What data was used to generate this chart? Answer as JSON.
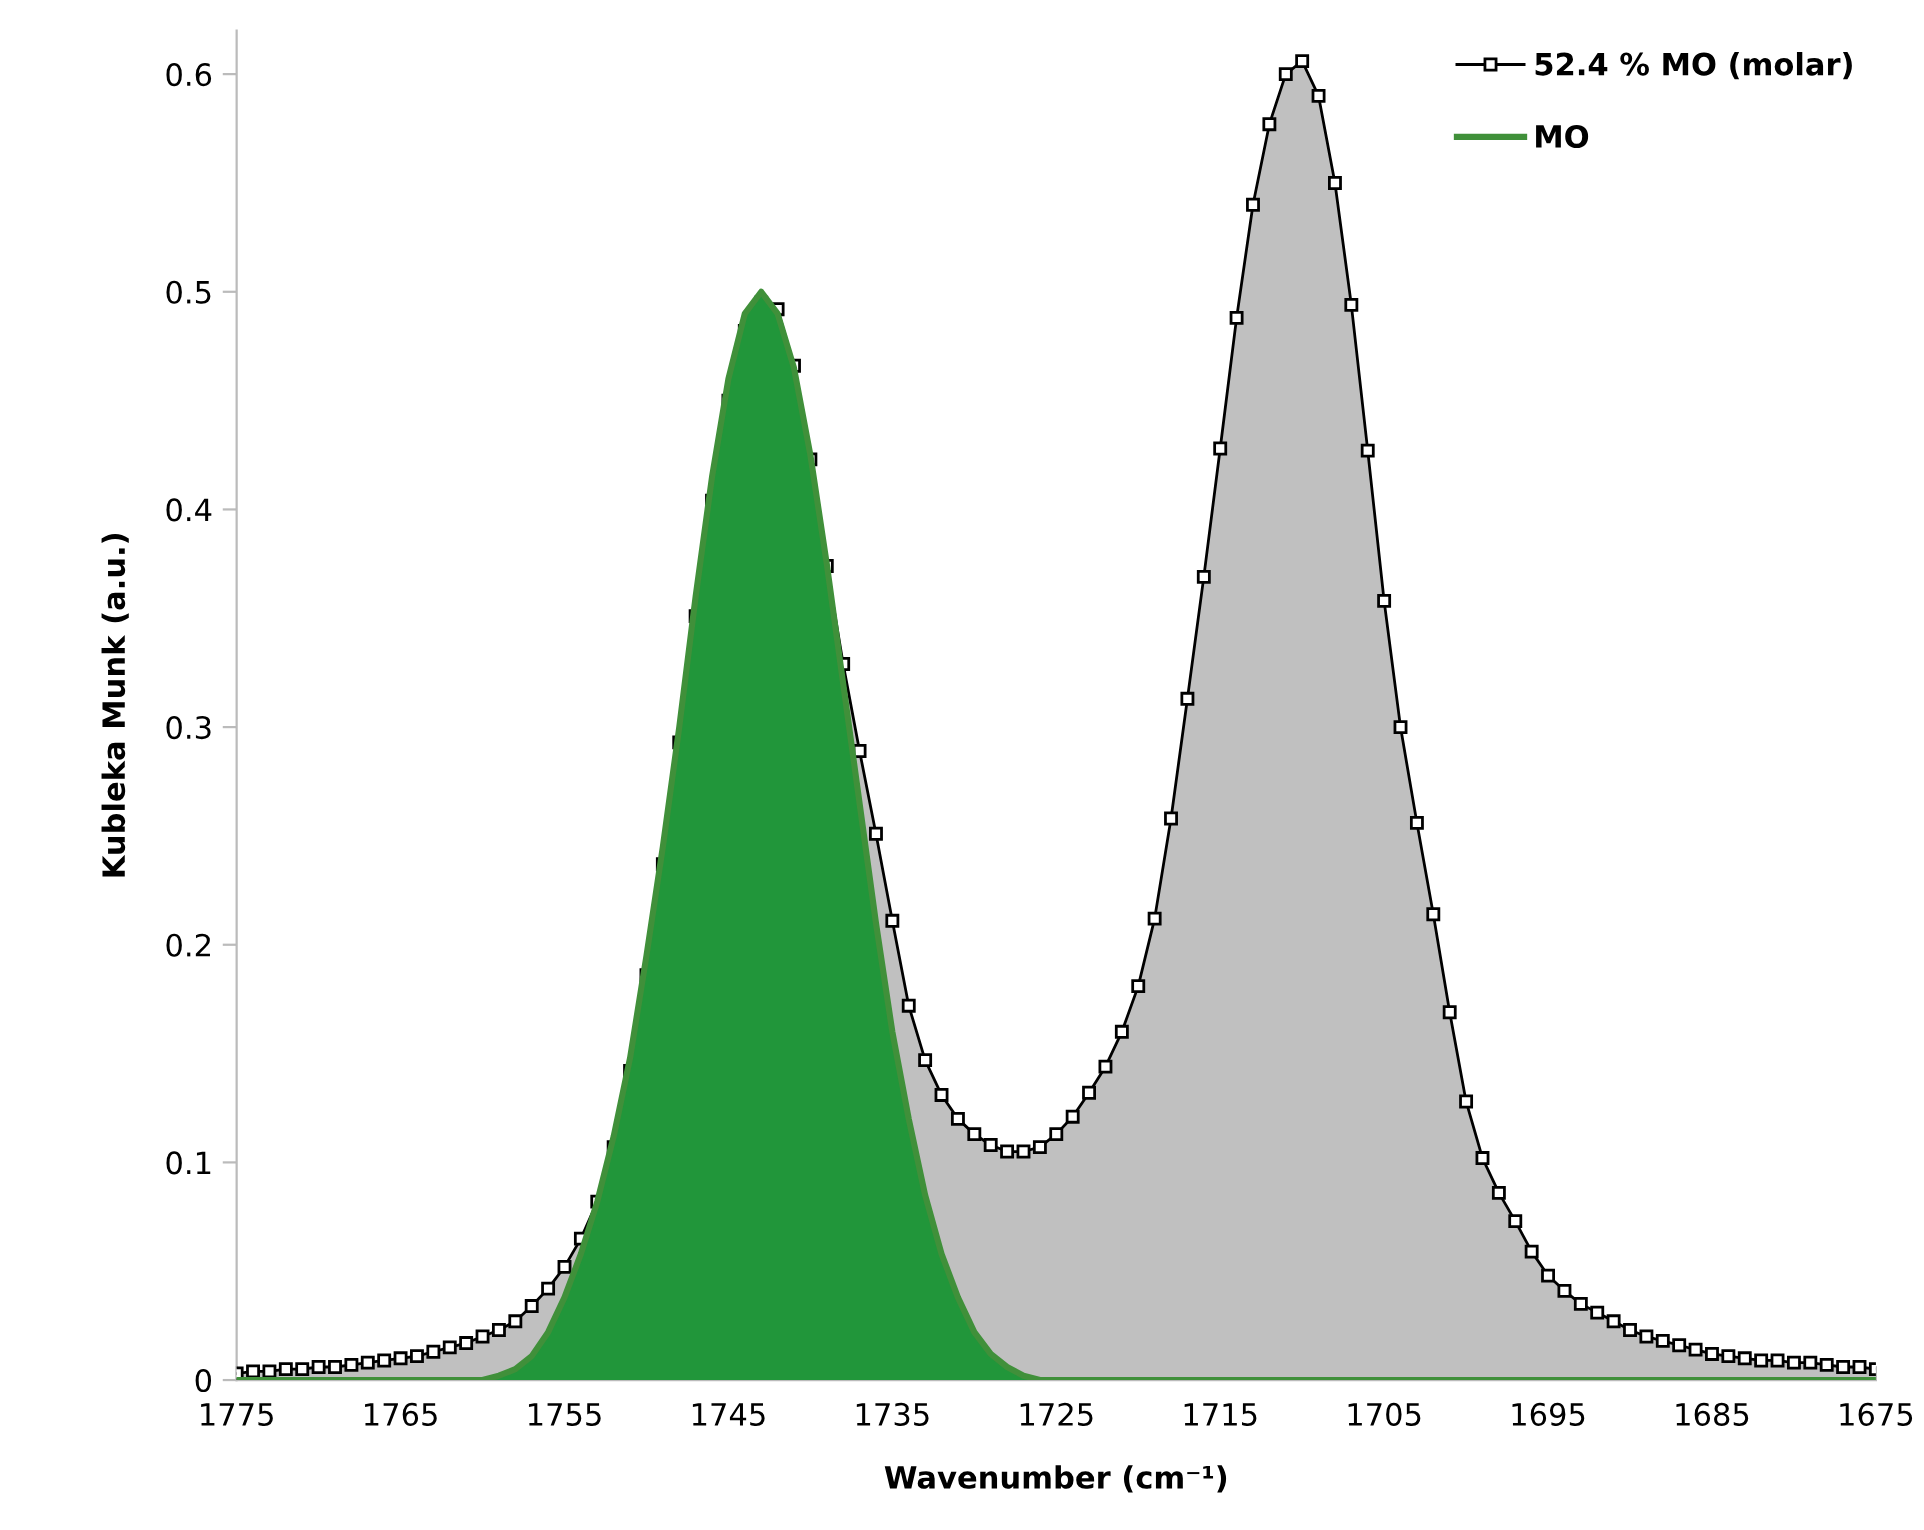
{
  "chart_data": {
    "type": "area",
    "xlabel": "Wavenumber (cm⁻¹)",
    "ylabel": "Kubleka Munk (a.u.)",
    "xlim": [
      1775,
      1675
    ],
    "xticks": [
      1775,
      1765,
      1755,
      1745,
      1735,
      1725,
      1715,
      1705,
      1695,
      1685,
      1675
    ],
    "ylim": [
      0,
      0.62
    ],
    "yticks": [
      0,
      0.1,
      0.2,
      0.3,
      0.4,
      0.5,
      0.6
    ],
    "grid": false,
    "legend": "top right",
    "series": [
      {
        "name": "52.4 % MO (molar)",
        "color": "#c0c0c0",
        "marker": "square",
        "x": [
          1775,
          1774,
          1773,
          1772,
          1771,
          1770,
          1769,
          1768,
          1767,
          1766,
          1765,
          1764,
          1763,
          1762,
          1761,
          1760,
          1759,
          1758,
          1757,
          1756,
          1755,
          1754,
          1753,
          1752,
          1751,
          1750,
          1749,
          1748,
          1747,
          1746,
          1745,
          1744,
          1743,
          1742,
          1741,
          1740,
          1739,
          1738,
          1737,
          1736,
          1735,
          1734,
          1733,
          1732,
          1731,
          1730,
          1729,
          1728,
          1727,
          1726,
          1725,
          1724,
          1723,
          1722,
          1721,
          1720,
          1719,
          1718,
          1717,
          1716,
          1715,
          1714,
          1713,
          1712,
          1711,
          1710,
          1709,
          1708,
          1707,
          1706,
          1705,
          1704,
          1703,
          1702,
          1701,
          1700,
          1699,
          1698,
          1697,
          1696,
          1695,
          1694,
          1693,
          1692,
          1691,
          1690,
          1689,
          1688,
          1687,
          1686,
          1685,
          1684,
          1683,
          1682,
          1681,
          1680,
          1679,
          1678,
          1677,
          1676,
          1675
        ],
        "values": [
          0.003,
          0.004,
          0.004,
          0.005,
          0.005,
          0.006,
          0.006,
          0.007,
          0.008,
          0.009,
          0.01,
          0.011,
          0.013,
          0.015,
          0.017,
          0.02,
          0.023,
          0.027,
          0.034,
          0.042,
          0.052,
          0.065,
          0.082,
          0.107,
          0.142,
          0.186,
          0.237,
          0.293,
          0.351,
          0.404,
          0.45,
          0.482,
          0.495,
          0.492,
          0.466,
          0.423,
          0.374,
          0.329,
          0.289,
          0.251,
          0.211,
          0.172,
          0.147,
          0.131,
          0.12,
          0.113,
          0.108,
          0.105,
          0.105,
          0.107,
          0.113,
          0.121,
          0.132,
          0.144,
          0.16,
          0.181,
          0.212,
          0.258,
          0.313,
          0.369,
          0.428,
          0.488,
          0.54,
          0.577,
          0.6,
          0.606,
          0.59,
          0.55,
          0.494,
          0.427,
          0.358,
          0.3,
          0.256,
          0.214,
          0.169,
          0.128,
          0.102,
          0.086,
          0.073,
          0.059,
          0.048,
          0.041,
          0.035,
          0.031,
          0.027,
          0.023,
          0.02,
          0.018,
          0.016,
          0.014,
          0.012,
          0.011,
          0.01,
          0.009,
          0.009,
          0.008,
          0.008,
          0.007,
          0.006,
          0.006,
          0.005
        ]
      },
      {
        "name": "MO",
        "color": "#21963a",
        "marker": "none",
        "x": [
          1775,
          1760,
          1759,
          1758,
          1757,
          1756,
          1755,
          1754,
          1753,
          1752,
          1751,
          1750,
          1749,
          1748,
          1747,
          1746,
          1745,
          1744,
          1743,
          1742,
          1741,
          1740,
          1739,
          1738,
          1737,
          1736,
          1735,
          1734,
          1733,
          1732,
          1731,
          1730,
          1729,
          1728,
          1727,
          1726,
          1675
        ],
        "values": [
          0,
          0,
          0.002,
          0.005,
          0.011,
          0.022,
          0.038,
          0.058,
          0.082,
          0.112,
          0.148,
          0.195,
          0.245,
          0.3,
          0.36,
          0.415,
          0.46,
          0.49,
          0.5,
          0.49,
          0.465,
          0.425,
          0.375,
          0.32,
          0.265,
          0.21,
          0.16,
          0.12,
          0.085,
          0.058,
          0.038,
          0.022,
          0.012,
          0.006,
          0.002,
          0,
          0
        ]
      }
    ]
  }
}
